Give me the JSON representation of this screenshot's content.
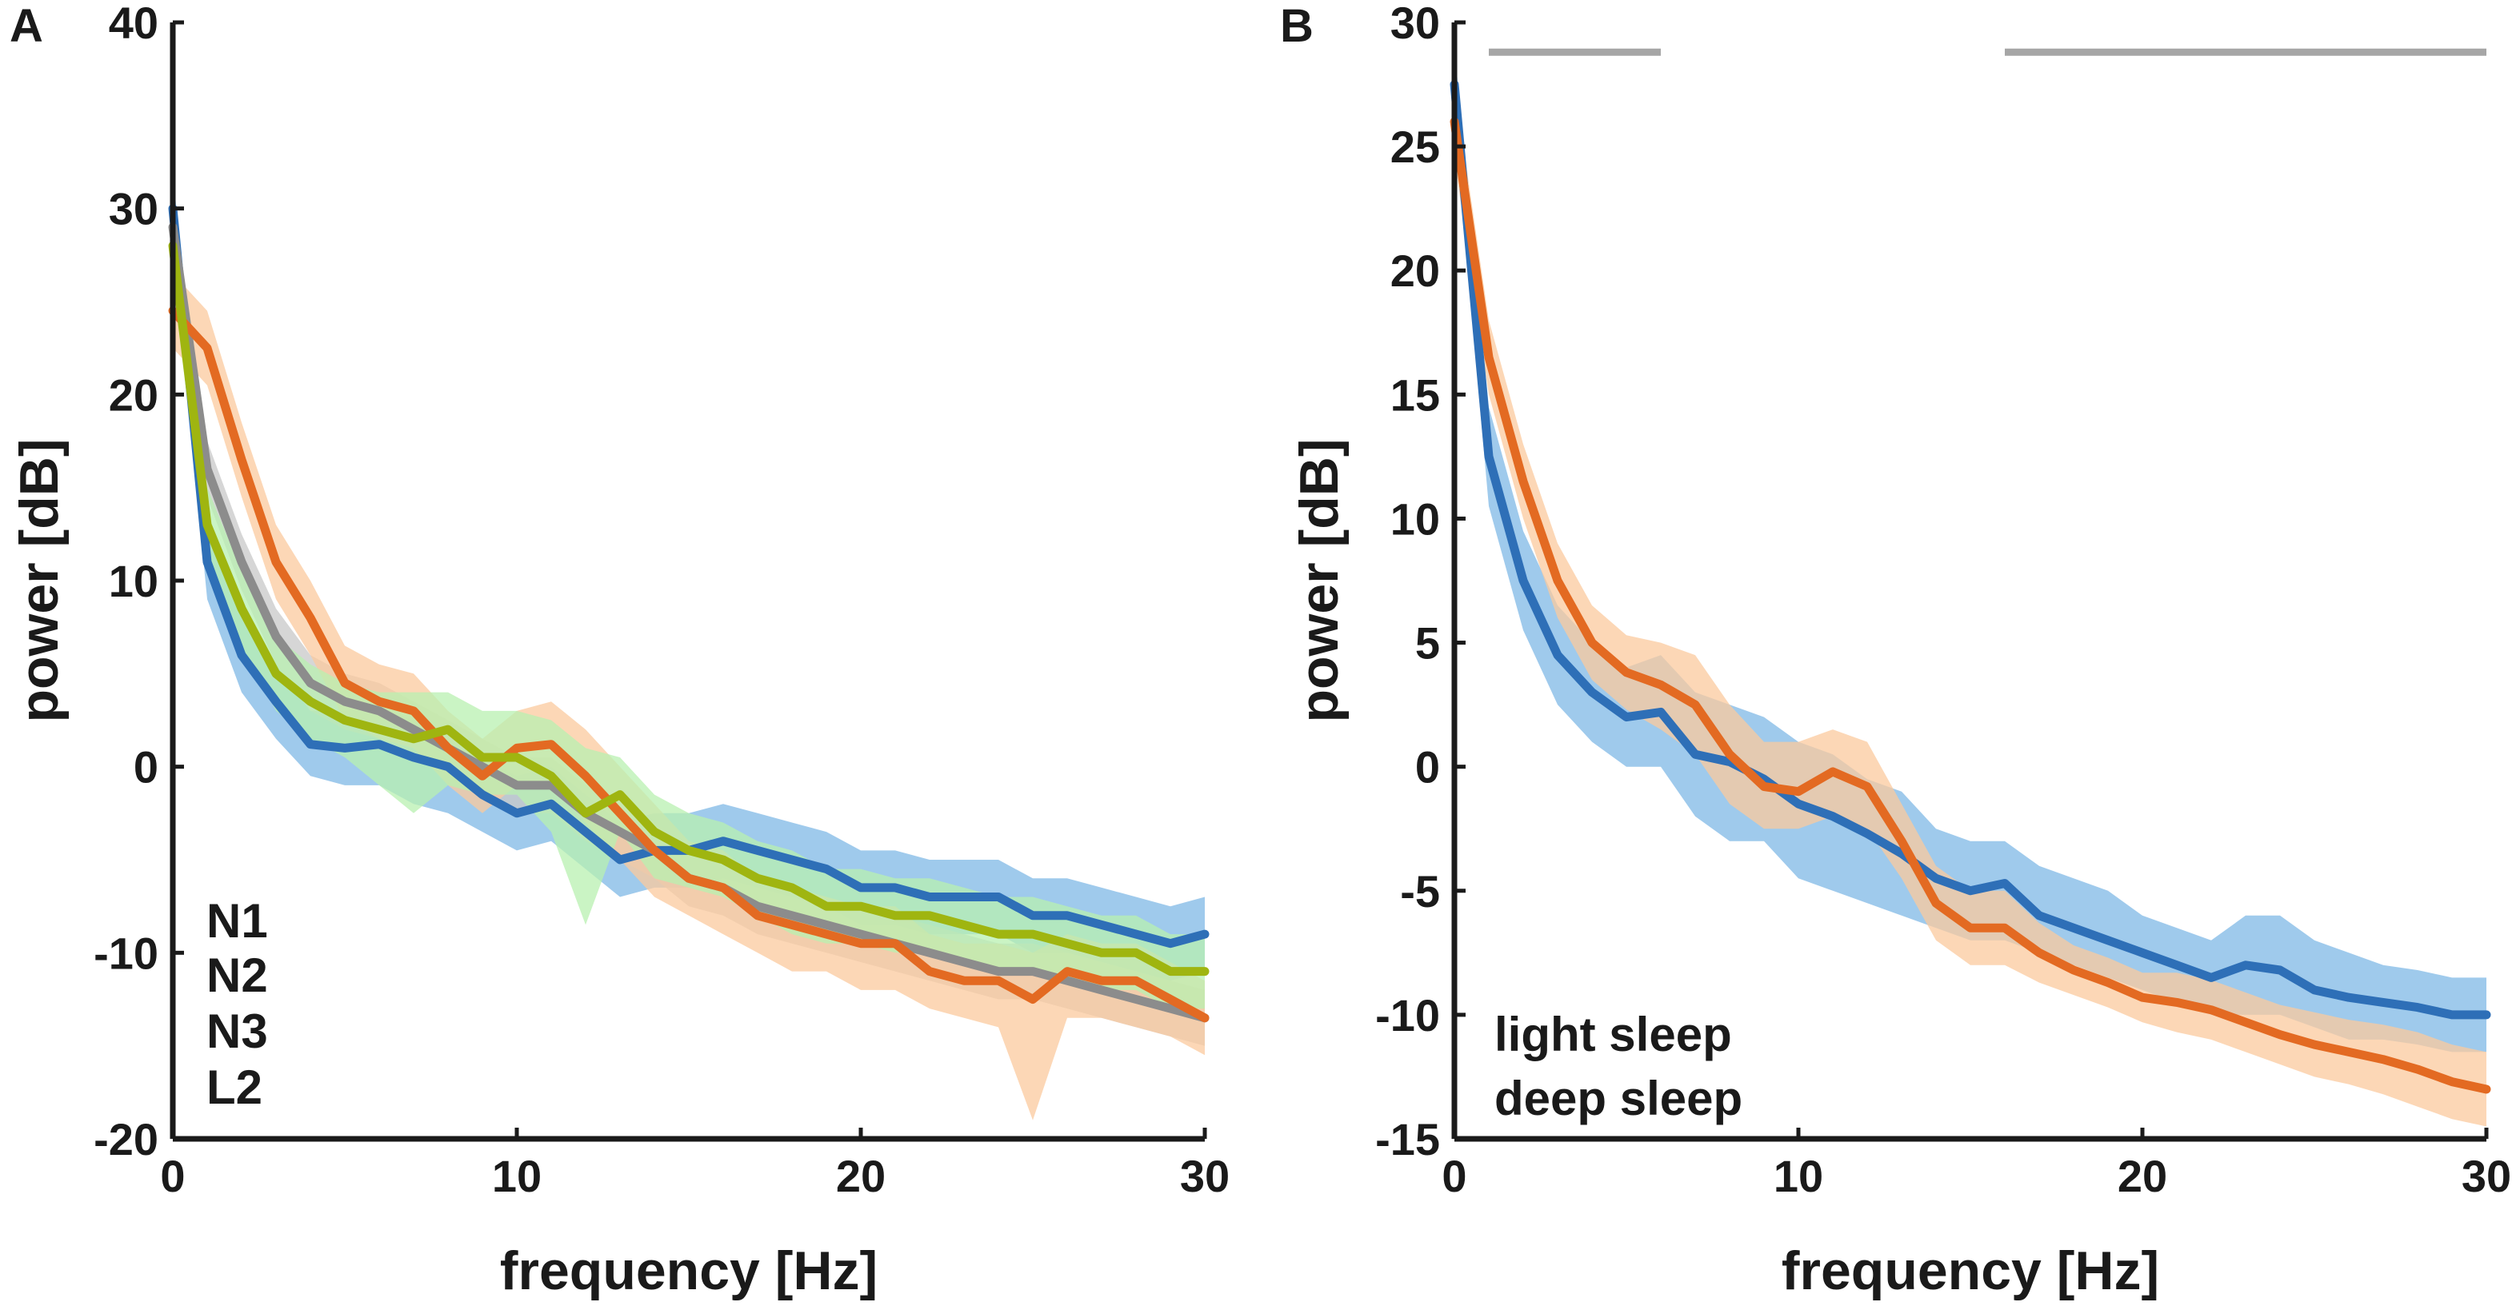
{
  "chart_data": [
    {
      "panel": "A",
      "type": "line",
      "xlabel": "frequency [Hz]",
      "ylabel": "power [dB]",
      "xlim": [
        0,
        30
      ],
      "ylim": [
        -20,
        40
      ],
      "xticks": [
        0,
        10,
        20,
        30
      ],
      "xtick_labels": [
        "0",
        "10",
        "20",
        "30"
      ],
      "yticks": [
        -20,
        -10,
        0,
        10,
        20,
        30,
        40
      ],
      "ytick_labels": [
        "-20",
        "-10",
        "0",
        "10",
        "20",
        "30",
        "40"
      ],
      "x": [
        0,
        1,
        2,
        3,
        4,
        5,
        6,
        7,
        8,
        9,
        10,
        11,
        12,
        13,
        14,
        15,
        16,
        17,
        18,
        19,
        20,
        21,
        22,
        23,
        24,
        25,
        26,
        27,
        28,
        29,
        30
      ],
      "legend_position": "bottom-left",
      "series": [
        {
          "name": "N1",
          "color": "#2e6fb7",
          "band_color": "#7fb8e6",
          "values": [
            30,
            11,
            6,
            3.5,
            1.2,
            1,
            1.2,
            0.5,
            0,
            -1.5,
            -2.5,
            -2,
            -3.5,
            -5,
            -4.5,
            -4.5,
            -4,
            -4.5,
            -5,
            -5.5,
            -6.5,
            -6.5,
            -7,
            -7,
            -7,
            -8,
            -8,
            -8.5,
            -9,
            -9.5,
            -9
          ],
          "lower": [
            28,
            9,
            4,
            1.5,
            -0.5,
            -1,
            -1,
            -2,
            -2.5,
            -3.5,
            -4.5,
            -4,
            -5.5,
            -7,
            -6.5,
            -6.5,
            -6,
            -6.5,
            -7,
            -7.5,
            -8.5,
            -8.5,
            -9,
            -9,
            -9,
            -10,
            -10,
            -10.5,
            -11,
            -11.5,
            -11
          ],
          "upper": [
            32,
            13,
            8,
            5.5,
            3,
            3,
            3.2,
            2.5,
            2,
            0.5,
            -0.5,
            0,
            -1.5,
            -3,
            -2.5,
            -2.5,
            -2,
            -2.5,
            -3,
            -3.5,
            -4.5,
            -4.5,
            -5,
            -5,
            -5,
            -6,
            -6,
            -6.5,
            -7,
            -7.5,
            -7
          ]
        },
        {
          "name": "N2",
          "color": "#8c8c8c",
          "band_color": "#c8c8c8",
          "values": [
            29,
            16,
            11,
            7,
            4.5,
            3.5,
            3,
            2,
            1,
            0,
            -1,
            -1,
            -2.5,
            -3.5,
            -4.5,
            -6,
            -6.5,
            -7.5,
            -8,
            -8.5,
            -9,
            -9.5,
            -10,
            -10.5,
            -11,
            -11,
            -11.5,
            -12,
            -12.5,
            -13,
            -13.5
          ],
          "lower": [
            27.5,
            14.5,
            9.5,
            5.5,
            3,
            2,
            1.5,
            0.5,
            -0.5,
            -1.5,
            -2.5,
            -2.5,
            -4,
            -5,
            -6,
            -7.5,
            -8,
            -9,
            -9.5,
            -10,
            -10.5,
            -11,
            -11.5,
            -12,
            -12.5,
            -12.5,
            -13,
            -13.5,
            -14,
            -14.5,
            -15
          ],
          "upper": [
            30.5,
            17.5,
            12.5,
            8.5,
            6,
            5,
            4.5,
            3.5,
            2.5,
            1.5,
            0.5,
            0.5,
            -1,
            -2,
            -3,
            -4.5,
            -5,
            -6,
            -6.5,
            -7,
            -7.5,
            -8,
            -8.5,
            -9,
            -9.5,
            -9.5,
            -10,
            -10.5,
            -11,
            -11.5,
            -12
          ]
        },
        {
          "name": "N3",
          "color": "#e36a22",
          "band_color": "#fbc99e",
          "values": [
            24.5,
            22.5,
            16.5,
            11,
            8,
            4.5,
            3.5,
            3,
            1,
            -0.5,
            1,
            1.2,
            -0.5,
            -2.5,
            -4.5,
            -6,
            -6.5,
            -8,
            -8.5,
            -9,
            -9.5,
            -9.5,
            -11,
            -11.5,
            -11.5,
            -12.5,
            -11,
            -11.5,
            -11.5,
            -12.5,
            -13.5
          ],
          "lower": [
            22.5,
            20.5,
            14.5,
            9,
            6,
            2.5,
            1.5,
            1,
            -1,
            -2.5,
            -1,
            -1,
            -3,
            -5,
            -7,
            -8,
            -9,
            -10,
            -11,
            -11,
            -12,
            -12,
            -13,
            -13.5,
            -14,
            -19,
            -13.5,
            -13.5,
            -14,
            -14.5,
            -15.5
          ],
          "upper": [
            26.5,
            24.5,
            18.5,
            13,
            10,
            6.5,
            5.5,
            5,
            3,
            1.5,
            3,
            3.5,
            2,
            0,
            -2,
            -4,
            -4.5,
            -6,
            -6.5,
            -7,
            -7.5,
            -7.5,
            -9,
            -9.5,
            -9.5,
            -10,
            -9,
            -9.5,
            -9.5,
            -10.5,
            -11.5
          ]
        },
        {
          "name": "L2",
          "color": "#9fb510",
          "band_color": "#b8f0b0",
          "values": [
            28,
            13,
            8.5,
            5,
            3.5,
            2.5,
            2,
            1.5,
            2,
            0.5,
            0.5,
            -0.5,
            -2.5,
            -1.5,
            -3.5,
            -4.5,
            -5,
            -6,
            -6.5,
            -7.5,
            -7.5,
            -8,
            -8,
            -8.5,
            -9,
            -9,
            -9.5,
            -10,
            -10,
            -11,
            -11
          ],
          "lower": [
            26,
            11,
            6.5,
            3,
            1.5,
            0.5,
            -1,
            -2.5,
            -1,
            -1.5,
            -1.5,
            -3.5,
            -8.5,
            -3.5,
            -6,
            -6.5,
            -7,
            -8,
            -9,
            -9.5,
            -9.5,
            -10,
            -10,
            -10.5,
            -11,
            -11,
            -11.5,
            -12,
            -12,
            -13,
            -13
          ],
          "upper": [
            30,
            15,
            10.5,
            7,
            5.5,
            4.5,
            4,
            4,
            4,
            3,
            3,
            2.5,
            1,
            0.5,
            -1.5,
            -2.5,
            -3,
            -4,
            -4.5,
            -5.5,
            -5.5,
            -6,
            -6,
            -6.5,
            -7,
            -7,
            -7.5,
            -8,
            -8,
            -9,
            -9
          ]
        }
      ]
    },
    {
      "panel": "B",
      "type": "line",
      "xlabel": "frequency [Hz]",
      "ylabel": "power [dB]",
      "xlim": [
        0,
        30
      ],
      "ylim": [
        -15,
        30
      ],
      "xticks": [
        0,
        10,
        20,
        30
      ],
      "xtick_labels": [
        "0",
        "10",
        "20",
        "30"
      ],
      "yticks": [
        -15,
        -10,
        -5,
        0,
        5,
        10,
        15,
        20,
        25,
        30
      ],
      "ytick_labels": [
        "-15",
        "-10",
        "-5",
        "0",
        "5",
        "10",
        "15",
        "20",
        "25",
        "30"
      ],
      "x": [
        0,
        1,
        2,
        3,
        4,
        5,
        6,
        7,
        8,
        9,
        10,
        11,
        12,
        13,
        14,
        15,
        16,
        17,
        18,
        19,
        20,
        21,
        22,
        23,
        24,
        25,
        26,
        27,
        28,
        29,
        30
      ],
      "significance_bars": [
        [
          1,
          6
        ],
        [
          16,
          30
        ]
      ],
      "significance_y": 28.8,
      "significance_color": "#a6a6a6",
      "legend_position": "bottom-left",
      "series": [
        {
          "name": "light sleep",
          "color": "#2e6fb7",
          "band_color": "#7fb8e6",
          "values": [
            27.5,
            12.5,
            7.5,
            4.5,
            3,
            2,
            2.2,
            0.5,
            0.2,
            -0.5,
            -1.5,
            -2,
            -2.7,
            -3.5,
            -4.5,
            -5,
            -4.7,
            -6,
            -6.5,
            -7,
            -7.5,
            -8,
            -8.5,
            -8,
            -8.2,
            -9,
            -9.3,
            -9.5,
            -9.7,
            -10,
            -10
          ],
          "lower": [
            26,
            10.5,
            5.5,
            2.5,
            1,
            0,
            0,
            -2,
            -3,
            -3,
            -4.5,
            -5,
            -5.5,
            -6,
            -6.5,
            -7,
            -7,
            -7.5,
            -8,
            -8.5,
            -9,
            -9.5,
            -10,
            -10,
            -10,
            -10.5,
            -11,
            -11,
            -11.2,
            -11.5,
            -11.5
          ],
          "upper": [
            29,
            14.5,
            9.5,
            6.5,
            5,
            4,
            4.5,
            3,
            2.5,
            2,
            1,
            0.5,
            -0.5,
            -1,
            -2.5,
            -3,
            -3,
            -4,
            -4.5,
            -5,
            -6,
            -6.5,
            -7,
            -6,
            -6,
            -7,
            -7.5,
            -8,
            -8.2,
            -8.5,
            -8.5
          ]
        },
        {
          "name": "deep sleep",
          "color": "#e36a22",
          "band_color": "#fbc99e",
          "values": [
            26,
            16.5,
            11.5,
            7.5,
            5,
            3.8,
            3.3,
            2.5,
            0.5,
            -0.8,
            -1,
            -0.2,
            -0.8,
            -3,
            -5.5,
            -6.5,
            -6.5,
            -7.5,
            -8.2,
            -8.7,
            -9.3,
            -9.5,
            -9.8,
            -10.3,
            -10.8,
            -11.2,
            -11.5,
            -11.8,
            -12.2,
            -12.7,
            -13
          ],
          "lower": [
            24.5,
            15,
            10,
            6,
            3.5,
            2.3,
            1.5,
            0.5,
            -1.5,
            -2.5,
            -2.5,
            -2,
            -2.5,
            -4.5,
            -7,
            -8,
            -8,
            -8.7,
            -9.2,
            -9.7,
            -10.3,
            -10.7,
            -11,
            -11.5,
            -12,
            -12.5,
            -12.8,
            -13.2,
            -13.7,
            -14.2,
            -14.5
          ],
          "upper": [
            27.5,
            18,
            13,
            9,
            6.5,
            5.3,
            5,
            4.5,
            2.5,
            1,
            1,
            1.5,
            1,
            -1.5,
            -4,
            -5,
            -5,
            -6.3,
            -7.2,
            -7.7,
            -8.3,
            -8.3,
            -8.6,
            -9.1,
            -9.6,
            -9.9,
            -10.2,
            -10.4,
            -10.7,
            -11.2,
            -11.5
          ]
        }
      ]
    }
  ]
}
